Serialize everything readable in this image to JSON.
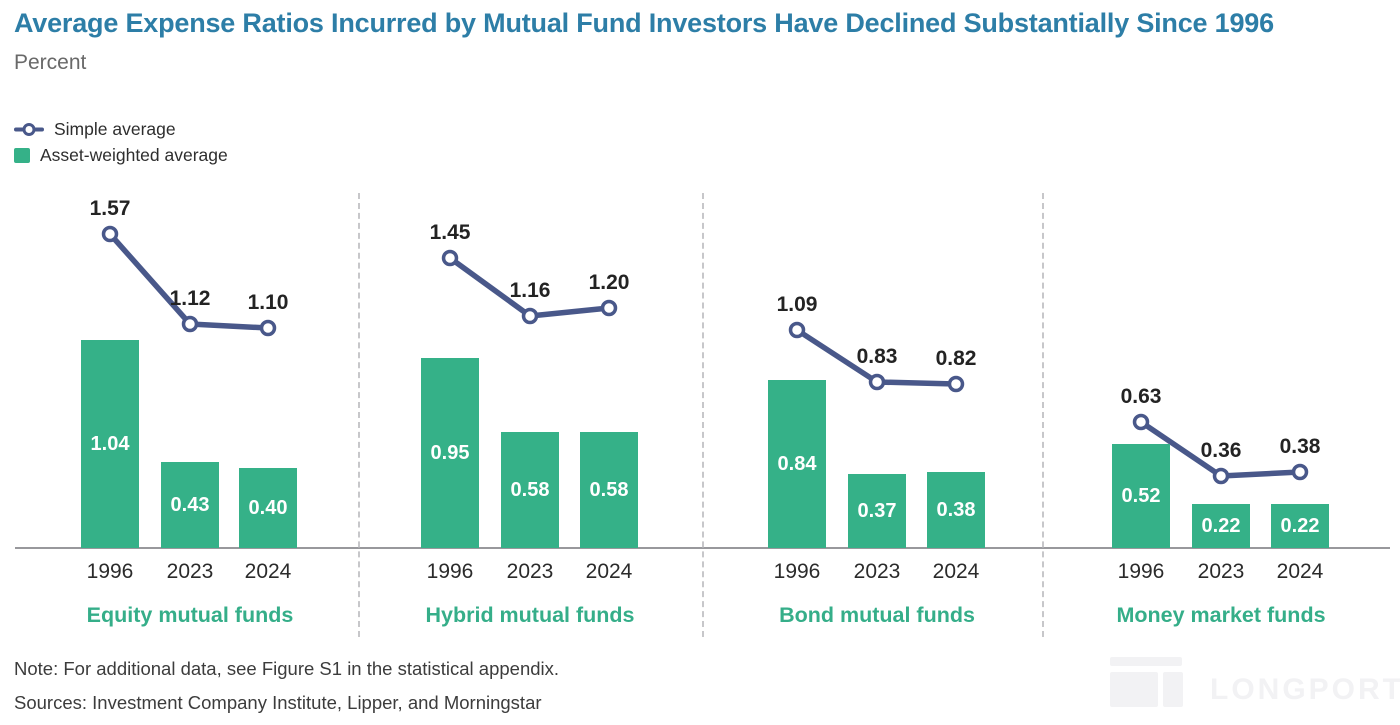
{
  "header": {
    "title": "Average Expense Ratios Incurred by Mutual Fund Investors Have Declined Substantially Since 1996",
    "subtitle": "Percent"
  },
  "legend": [
    {
      "label": "Simple average",
      "marker": "line-with-open-circle",
      "color": "#49588a"
    },
    {
      "label": "Asset-weighted average",
      "marker": "square",
      "color": "#35b188"
    }
  ],
  "chart_data": {
    "type": "bar",
    "subtype": "grouped-panels-with-line-overlay",
    "categories": [
      "1996",
      "2023",
      "2024"
    ],
    "unit": "percent",
    "ylim": [
      0,
      1.8
    ],
    "grid": false,
    "legend_position": "top-left",
    "panels": [
      {
        "name": "Equity mutual funds",
        "series": [
          {
            "name": "Simple average",
            "type": "line",
            "values": [
              1.57,
              1.12,
              1.1
            ]
          },
          {
            "name": "Asset-weighted average",
            "type": "bar",
            "values": [
              1.04,
              0.43,
              0.4
            ]
          }
        ]
      },
      {
        "name": "Hybrid mutual funds",
        "series": [
          {
            "name": "Simple average",
            "type": "line",
            "values": [
              1.45,
              1.16,
              1.2
            ]
          },
          {
            "name": "Asset-weighted average",
            "type": "bar",
            "values": [
              0.95,
              0.58,
              0.58
            ]
          }
        ]
      },
      {
        "name": "Bond mutual funds",
        "series": [
          {
            "name": "Simple average",
            "type": "line",
            "values": [
              1.09,
              0.83,
              0.82
            ]
          },
          {
            "name": "Asset-weighted average",
            "type": "bar",
            "values": [
              0.84,
              0.37,
              0.38
            ]
          }
        ]
      },
      {
        "name": "Money market funds",
        "series": [
          {
            "name": "Simple average",
            "type": "line",
            "values": [
              0.63,
              0.36,
              0.38
            ]
          },
          {
            "name": "Asset-weighted average",
            "type": "bar",
            "values": [
              0.52,
              0.22,
              0.22
            ]
          }
        ]
      }
    ]
  },
  "footer": {
    "note": "Note: For additional data, see Figure S1 in the statistical appendix.",
    "sources": "Sources: Investment Company Institute, Lipper, and Morningstar"
  },
  "watermark": "LONGPORT",
  "colors": {
    "title": "#2d7ea7",
    "subtitle": "#696969",
    "bar": "#35b188",
    "line": "#49588a",
    "panel_label": "#35ae89",
    "axis": "#98989c",
    "divider": "#c7c7ca",
    "watermark": "#f2f2f4"
  }
}
